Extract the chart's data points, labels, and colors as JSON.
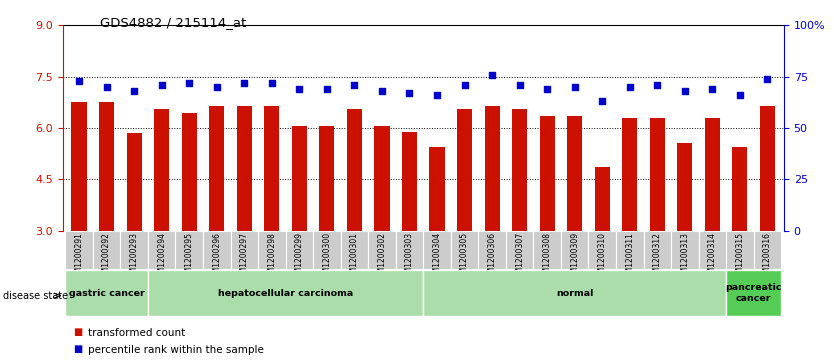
{
  "title": "GDS4882 / 215114_at",
  "samples": [
    "GSM1200291",
    "GSM1200292",
    "GSM1200293",
    "GSM1200294",
    "GSM1200295",
    "GSM1200296",
    "GSM1200297",
    "GSM1200298",
    "GSM1200299",
    "GSM1200300",
    "GSM1200301",
    "GSM1200302",
    "GSM1200303",
    "GSM1200304",
    "GSM1200305",
    "GSM1200306",
    "GSM1200307",
    "GSM1200308",
    "GSM1200309",
    "GSM1200310",
    "GSM1200311",
    "GSM1200312",
    "GSM1200313",
    "GSM1200314",
    "GSM1200315",
    "GSM1200316"
  ],
  "bar_values": [
    6.75,
    6.75,
    5.85,
    6.55,
    6.45,
    6.65,
    6.65,
    6.65,
    6.05,
    6.05,
    6.55,
    6.05,
    5.88,
    5.45,
    6.55,
    6.65,
    6.55,
    6.35,
    6.35,
    4.85,
    6.3,
    6.3,
    5.55,
    6.3,
    5.45,
    6.65
  ],
  "percentile_values": [
    73,
    70,
    68,
    71,
    72,
    70,
    72,
    72,
    69,
    69,
    71,
    68,
    67,
    66,
    71,
    76,
    71,
    69,
    70,
    63,
    70,
    71,
    68,
    69,
    66,
    74
  ],
  "ylim_left": [
    3,
    9
  ],
  "ylim_right": [
    0,
    100
  ],
  "yticks_left": [
    3,
    4.5,
    6,
    7.5,
    9
  ],
  "yticks_right": [
    0,
    25,
    50,
    75,
    100
  ],
  "bar_color": "#cc1100",
  "dot_color": "#0000cc",
  "disease_groups": [
    {
      "label": "gastric cancer",
      "start": 0,
      "end": 3,
      "color": "#aaddaa"
    },
    {
      "label": "hepatocellular carcinoma",
      "start": 3,
      "end": 13,
      "color": "#aaddaa"
    },
    {
      "label": "normal",
      "start": 13,
      "end": 24,
      "color": "#aaddaa"
    },
    {
      "label": "pancreatic\ncancer",
      "start": 24,
      "end": 26,
      "color": "#55cc55"
    }
  ],
  "disease_state_label": "disease state",
  "legend_bar_label": "transformed count",
  "legend_dot_label": "percentile rank within the sample"
}
